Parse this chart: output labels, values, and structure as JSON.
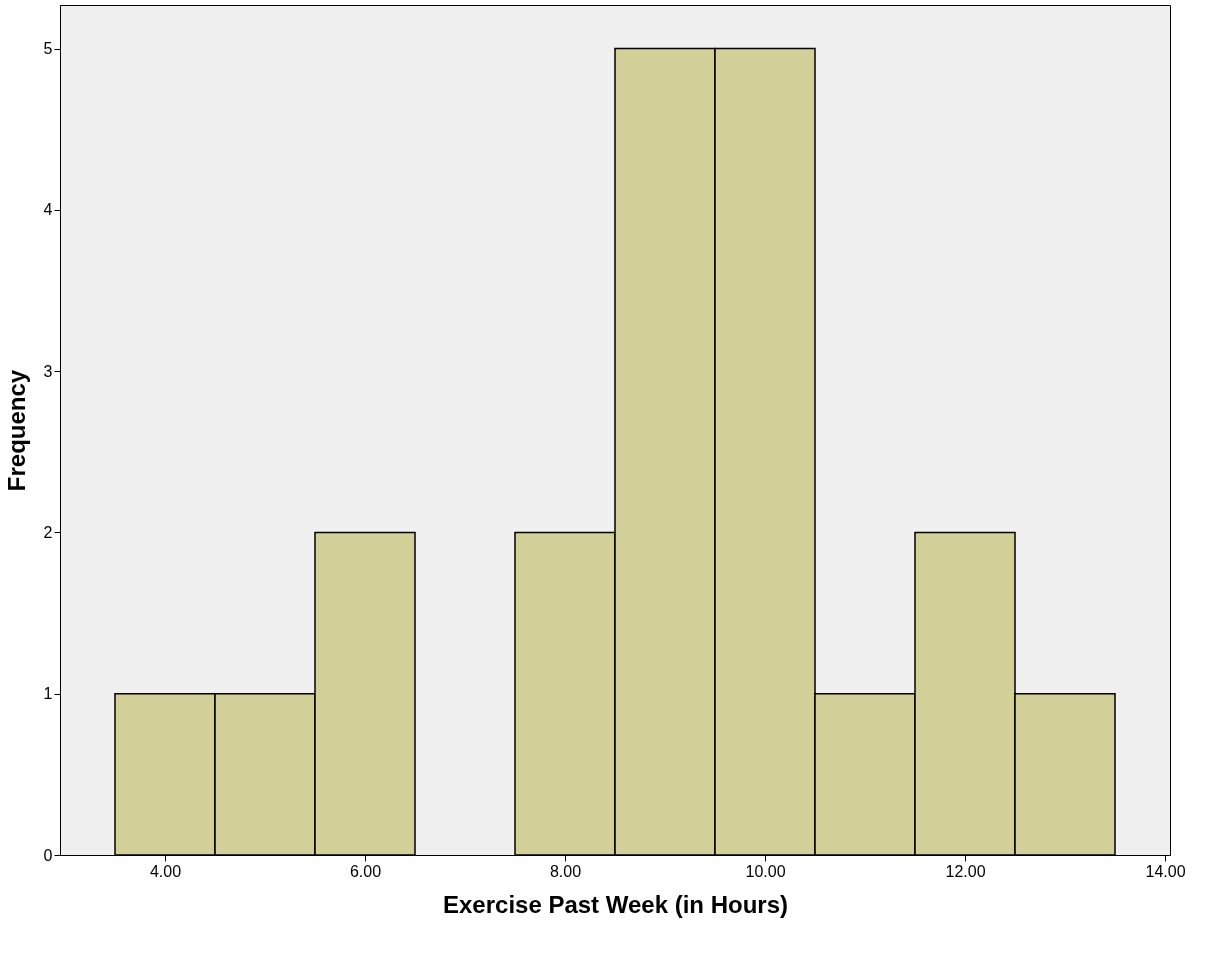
{
  "chart_data": {
    "type": "histogram",
    "xlabel": "Exercise Past Week (in Hours)",
    "ylabel": "Frequency",
    "bins": [
      3.5,
      4.5,
      5.5,
      6.5,
      7.5,
      8.5,
      9.5,
      10.5,
      11.5,
      12.5,
      13.5
    ],
    "values": [
      1,
      1,
      2,
      0,
      2,
      5,
      5,
      1,
      2,
      1
    ],
    "color": "#d3cf98",
    "xlim": [
      2.95,
      14.05
    ],
    "ylim": [
      0,
      5.27
    ],
    "xticks": [
      {
        "value": 4,
        "label": "4.00"
      },
      {
        "value": 6,
        "label": "6.00"
      },
      {
        "value": 8,
        "label": "8.00"
      },
      {
        "value": 10,
        "label": "10.00"
      },
      {
        "value": 12,
        "label": "12.00"
      },
      {
        "value": 14,
        "label": "14.00"
      }
    ],
    "yticks": [
      0,
      1,
      2,
      3,
      4,
      5
    ],
    "grid": false
  }
}
